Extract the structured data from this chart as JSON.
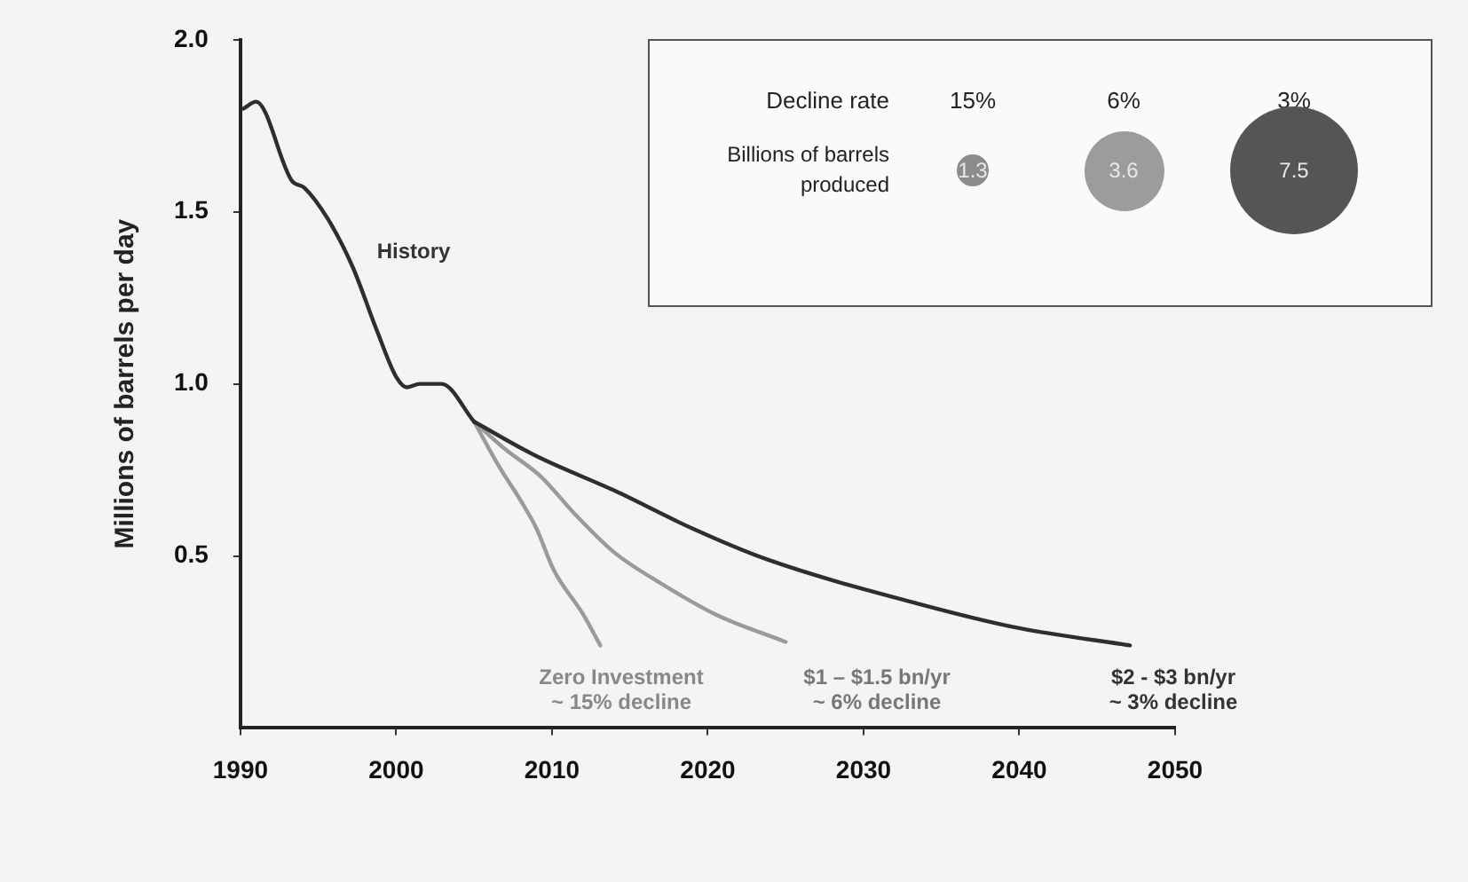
{
  "chart_data": {
    "type": "line",
    "ylabel": "Millions of barrels per day",
    "xlim": [
      1990,
      2050
    ],
    "xticks": [
      1990,
      2000,
      2010,
      2020,
      2030,
      2040,
      2050
    ],
    "ylim": [
      0,
      2
    ],
    "yticks": [
      {
        "value": 0.5,
        "label": "0.5"
      },
      {
        "value": 1,
        "label": "1.0"
      },
      {
        "value": 1.5,
        "label": "1.5"
      },
      {
        "value": 2,
        "label": "2.0"
      }
    ],
    "grid": false,
    "legend": false,
    "marker": "none",
    "line_style": "solid",
    "series": [
      {
        "color": "#2e2e2e",
        "x": [
          1990.2,
          1991,
          1993.3,
          1994.1,
          1995.6,
          1997.2,
          1998.8,
          2000,
          2000.7,
          2001.5,
          2002.9,
          2005
        ],
        "values": [
          1.8,
          1.82,
          1.59,
          1.57,
          1.48,
          1.34,
          1.15,
          1.02,
          0.99,
          1.0,
          1.0,
          0.89
        ]
      },
      {
        "color": "#2e2e2e",
        "x": [
          2005,
          2009,
          2014,
          2019,
          2023.8,
          2033.6,
          2040,
          2047.1
        ],
        "values": [
          0.89,
          0.79,
          0.69,
          0.58,
          0.49,
          0.36,
          0.29,
          0.24
        ]
      },
      {
        "color": "#9a9a9a",
        "x": [
          2005,
          2007,
          2009.3,
          2011.5,
          2014,
          2017,
          2020.5,
          2025
        ],
        "values": [
          0.89,
          0.81,
          0.73,
          0.62,
          0.51,
          0.42,
          0.33,
          0.25
        ]
      },
      {
        "color": "#9a9a9a",
        "x": [
          2005,
          2006.6,
          2008,
          2009,
          2010.1,
          2012,
          2013.1
        ],
        "values": [
          0.89,
          0.76,
          0.66,
          0.58,
          0.46,
          0.33,
          0.24
        ]
      }
    ],
    "annotations": [
      "History",
      "Zero Investment\n~ 15% decline",
      "$1 – $1.5 bn/yr\n~ 6% decline",
      "$2 - $3 bn/yr\n~ 3% decline",
      "Decline rate",
      "15%",
      "6%",
      "3%",
      "Billions of barrels produced",
      "1.3",
      "3.6",
      "7.5"
    ]
  }
}
